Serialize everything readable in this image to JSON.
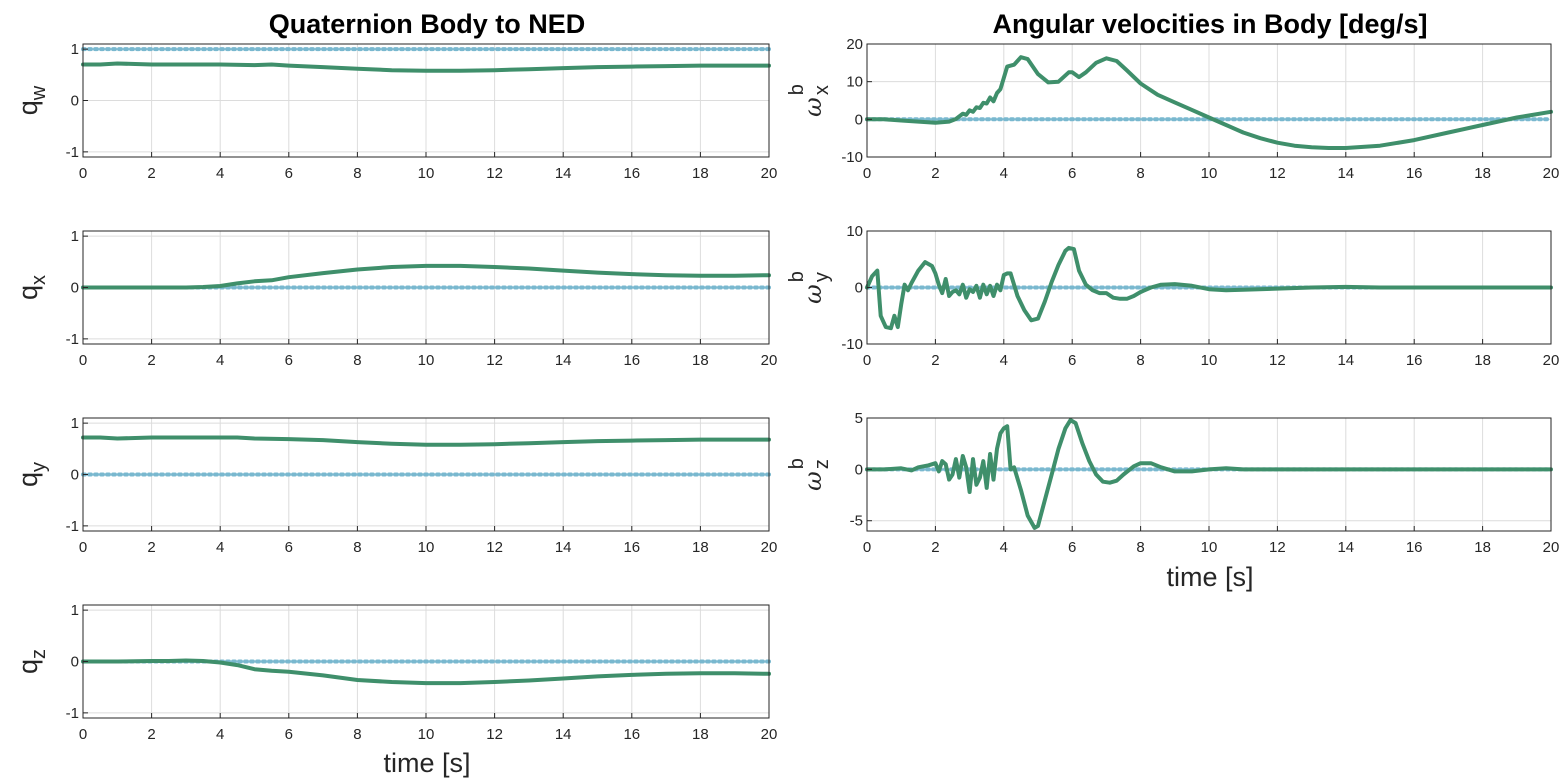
{
  "colors": {
    "actual": "#3f8f6b",
    "reference": "#79b8cf"
  },
  "figure": {
    "left_title": "Quaternion Body to NED",
    "right_title": "Angular velocities in Body [deg/s]",
    "left_xlabel": "time [s]",
    "right_xlabel": "time [s]"
  },
  "chart_data": [
    {
      "type": "line",
      "id": "qw",
      "ylabel": {
        "main": "q",
        "sub": "w"
      },
      "xlim": [
        0,
        20
      ],
      "ylim": [
        -1.1,
        1.1
      ],
      "xticks": [
        0,
        2,
        4,
        6,
        8,
        10,
        12,
        14,
        16,
        18,
        20
      ],
      "yticks": [
        -1,
        0,
        1
      ],
      "grid": true,
      "series": [
        {
          "role": "actual",
          "x": [
            0,
            0.5,
            1,
            2,
            3,
            4,
            5,
            5.5,
            6,
            7,
            8,
            9,
            10,
            11,
            12,
            13,
            14,
            15,
            16,
            17,
            18,
            19,
            20
          ],
          "y": [
            0.7,
            0.7,
            0.72,
            0.7,
            0.7,
            0.7,
            0.69,
            0.7,
            0.68,
            0.65,
            0.62,
            0.59,
            0.58,
            0.58,
            0.59,
            0.61,
            0.63,
            0.65,
            0.66,
            0.67,
            0.68,
            0.68,
            0.68
          ]
        },
        {
          "role": "reference",
          "x": [
            0,
            20
          ],
          "y": [
            1,
            1
          ]
        }
      ]
    },
    {
      "type": "line",
      "id": "qx",
      "ylabel": {
        "main": "q",
        "sub": "x"
      },
      "xlim": [
        0,
        20
      ],
      "ylim": [
        -1.1,
        1.1
      ],
      "xticks": [
        0,
        2,
        4,
        6,
        8,
        10,
        12,
        14,
        16,
        18,
        20
      ],
      "yticks": [
        -1,
        0,
        1
      ],
      "grid": true,
      "series": [
        {
          "role": "actual",
          "x": [
            0,
            2,
            3,
            3.5,
            4,
            4.5,
            5,
            5.5,
            6,
            7,
            8,
            9,
            10,
            10.5,
            11,
            12,
            13,
            14,
            15,
            16,
            17,
            18,
            19,
            20
          ],
          "y": [
            0,
            0,
            0,
            0.01,
            0.03,
            0.08,
            0.12,
            0.14,
            0.2,
            0.28,
            0.35,
            0.4,
            0.42,
            0.42,
            0.42,
            0.4,
            0.37,
            0.33,
            0.29,
            0.26,
            0.24,
            0.23,
            0.23,
            0.24
          ]
        },
        {
          "role": "reference",
          "x": [
            0,
            20
          ],
          "y": [
            0,
            0
          ]
        }
      ]
    },
    {
      "type": "line",
      "id": "qy",
      "ylabel": {
        "main": "q",
        "sub": "y"
      },
      "xlim": [
        0,
        20
      ],
      "ylim": [
        -1.1,
        1.1
      ],
      "xticks": [
        0,
        2,
        4,
        6,
        8,
        10,
        12,
        14,
        16,
        18,
        20
      ],
      "yticks": [
        -1,
        0,
        1
      ],
      "grid": true,
      "series": [
        {
          "role": "actual",
          "x": [
            0,
            0.5,
            1,
            2,
            3,
            4,
            4.5,
            5,
            6,
            7,
            8,
            9,
            10,
            11,
            12,
            13,
            14,
            15,
            16,
            17,
            18,
            19,
            20
          ],
          "y": [
            0.72,
            0.72,
            0.7,
            0.72,
            0.72,
            0.72,
            0.72,
            0.7,
            0.69,
            0.67,
            0.63,
            0.6,
            0.58,
            0.58,
            0.59,
            0.61,
            0.63,
            0.65,
            0.66,
            0.67,
            0.68,
            0.68,
            0.68
          ]
        },
        {
          "role": "reference",
          "x": [
            0,
            20
          ],
          "y": [
            0,
            0
          ]
        }
      ]
    },
    {
      "type": "line",
      "id": "qz",
      "ylabel": {
        "main": "q",
        "sub": "z"
      },
      "xlim": [
        0,
        20
      ],
      "ylim": [
        -1.1,
        1.1
      ],
      "xticks": [
        0,
        2,
        4,
        6,
        8,
        10,
        12,
        14,
        16,
        18,
        20
      ],
      "yticks": [
        -1,
        0,
        1
      ],
      "grid": true,
      "series": [
        {
          "role": "actual",
          "x": [
            0,
            1,
            2,
            2.5,
            3,
            3.5,
            4,
            4.5,
            5,
            5.5,
            6,
            7,
            8,
            9,
            10,
            11,
            12,
            13,
            14,
            15,
            16,
            17,
            18,
            19,
            20
          ],
          "y": [
            0,
            0,
            0.01,
            0.01,
            0.02,
            0.01,
            -0.02,
            -0.07,
            -0.15,
            -0.18,
            -0.2,
            -0.27,
            -0.36,
            -0.4,
            -0.42,
            -0.42,
            -0.4,
            -0.37,
            -0.33,
            -0.29,
            -0.26,
            -0.24,
            -0.23,
            -0.23,
            -0.24
          ]
        },
        {
          "role": "reference",
          "x": [
            0,
            20
          ],
          "y": [
            0,
            0
          ]
        }
      ]
    },
    {
      "type": "line",
      "id": "wx",
      "ylabel": {
        "main": "ω",
        "sub": "x",
        "sup": "b"
      },
      "xlim": [
        0,
        20
      ],
      "ylim": [
        -10,
        20
      ],
      "xticks": [
        0,
        2,
        4,
        6,
        8,
        10,
        12,
        14,
        16,
        18,
        20
      ],
      "yticks": [
        -10,
        0,
        10,
        20
      ],
      "grid": true,
      "series": [
        {
          "role": "actual",
          "x": [
            0,
            0.5,
            1,
            1.5,
            2,
            2.4,
            2.6,
            2.8,
            2.9,
            3.0,
            3.1,
            3.2,
            3.3,
            3.4,
            3.5,
            3.6,
            3.7,
            3.8,
            3.9,
            4.0,
            4.1,
            4.3,
            4.5,
            4.7,
            5.0,
            5.3,
            5.6,
            5.9,
            6.0,
            6.2,
            6.4,
            6.7,
            7.0,
            7.3,
            7.6,
            8.0,
            8.5,
            9,
            9.5,
            10,
            10.5,
            11,
            11.5,
            12,
            12.5,
            13,
            13.5,
            14,
            15,
            16,
            17,
            18,
            19,
            20
          ],
          "y": [
            0,
            0,
            -0.3,
            -0.6,
            -0.9,
            -0.6,
            0.1,
            1.5,
            1.2,
            2.4,
            2.0,
            3.2,
            3.0,
            4.4,
            4.2,
            5.8,
            4.8,
            7.0,
            8.0,
            11,
            14,
            14.5,
            16.5,
            16,
            12,
            9.8,
            10,
            12.5,
            12.5,
            11.2,
            12.5,
            15,
            16.2,
            15.5,
            13,
            9.5,
            6.5,
            4.5,
            2.5,
            0.5,
            -1.5,
            -3.5,
            -5,
            -6.2,
            -7,
            -7.4,
            -7.6,
            -7.6,
            -7,
            -5.5,
            -3.5,
            -1.5,
            0.5,
            2
          ]
        },
        {
          "role": "reference",
          "x": [
            0,
            20
          ],
          "y": [
            0,
            0
          ]
        }
      ]
    },
    {
      "type": "line",
      "id": "wy",
      "ylabel": {
        "main": "ω",
        "sub": "y",
        "sup": "b"
      },
      "xlim": [
        0,
        20
      ],
      "ylim": [
        -10,
        10
      ],
      "xticks": [
        0,
        2,
        4,
        6,
        8,
        10,
        12,
        14,
        16,
        18,
        20
      ],
      "yticks": [
        -10,
        0,
        10
      ],
      "grid": true,
      "series": [
        {
          "role": "actual",
          "x": [
            0,
            0.15,
            0.3,
            0.4,
            0.55,
            0.7,
            0.8,
            0.9,
            1.0,
            1.1,
            1.2,
            1.3,
            1.5,
            1.7,
            1.9,
            2.0,
            2.1,
            2.2,
            2.3,
            2.4,
            2.5,
            2.6,
            2.7,
            2.8,
            2.9,
            3.0,
            3.1,
            3.2,
            3.3,
            3.4,
            3.5,
            3.6,
            3.7,
            3.8,
            3.9,
            4.0,
            4.1,
            4.2,
            4.4,
            4.6,
            4.8,
            5.0,
            5.2,
            5.4,
            5.6,
            5.8,
            5.9,
            6.05,
            6.2,
            6.4,
            6.6,
            6.8,
            7.0,
            7.2,
            7.4,
            7.6,
            7.8,
            8.0,
            8.3,
            8.6,
            9,
            9.5,
            10,
            10.5,
            11,
            12,
            13,
            14,
            15,
            16,
            17,
            18,
            19,
            20
          ],
          "y": [
            0,
            2,
            3,
            -5,
            -7,
            -7.2,
            -5,
            -7,
            -3,
            0.5,
            -0.5,
            0.8,
            3,
            4.5,
            3.8,
            2.5,
            0.5,
            -1,
            1.5,
            -1.5,
            -0.8,
            -0.5,
            -1.2,
            0.5,
            -1.8,
            -0.3,
            -0.8,
            0.3,
            -1.8,
            0.5,
            -1.2,
            0.3,
            -1.5,
            0.5,
            -0.5,
            2.2,
            2.5,
            2.5,
            -1.5,
            -4,
            -5.8,
            -5.5,
            -2.5,
            1,
            4,
            6.5,
            7,
            6.8,
            3,
            0.5,
            -0.5,
            -1,
            -1,
            -1.8,
            -2,
            -2,
            -1.5,
            -0.8,
            0,
            0.5,
            0.6,
            0.3,
            -0.3,
            -0.5,
            -0.4,
            -0.2,
            0,
            0.1,
            0,
            0,
            0,
            0,
            0,
            0
          ]
        },
        {
          "role": "reference",
          "x": [
            0,
            20
          ],
          "y": [
            0,
            0
          ]
        }
      ]
    },
    {
      "type": "line",
      "id": "wz",
      "ylabel": {
        "main": "ω",
        "sub": "z",
        "sup": "b"
      },
      "xlim": [
        0,
        20
      ],
      "ylim": [
        -6,
        5
      ],
      "xticks": [
        0,
        2,
        4,
        6,
        8,
        10,
        12,
        14,
        16,
        18,
        20
      ],
      "yticks": [
        -5,
        0,
        5
      ],
      "grid": true,
      "series": [
        {
          "role": "actual",
          "x": [
            0,
            0.5,
            1,
            1.3,
            1.5,
            1.8,
            2.0,
            2.1,
            2.2,
            2.3,
            2.4,
            2.5,
            2.6,
            2.7,
            2.8,
            2.9,
            3.0,
            3.1,
            3.2,
            3.3,
            3.4,
            3.5,
            3.6,
            3.7,
            3.8,
            3.9,
            4.0,
            4.1,
            4.2,
            4.3,
            4.5,
            4.7,
            4.9,
            5.0,
            5.2,
            5.4,
            5.6,
            5.8,
            5.95,
            6.1,
            6.3,
            6.5,
            6.7,
            6.9,
            7.1,
            7.3,
            7.5,
            7.8,
            8.0,
            8.3,
            8.6,
            9,
            9.5,
            10,
            10.5,
            11,
            12,
            13,
            14,
            15,
            16,
            17,
            18,
            19,
            20
          ],
          "y": [
            0,
            0,
            0.1,
            -0.1,
            0.2,
            0.4,
            0.6,
            -0.2,
            0.8,
            0.5,
            -1.0,
            -0.5,
            1.0,
            -0.8,
            1.3,
            0.2,
            -2.2,
            1.0,
            -1.5,
            -0.8,
            0.8,
            -1.8,
            1.5,
            -1.0,
            2.0,
            3.5,
            4.0,
            4.2,
            0,
            0.2,
            -2.0,
            -4.5,
            -5.7,
            -5.5,
            -3,
            -0.5,
            2,
            4,
            4.8,
            4.5,
            2.5,
            0.8,
            -0.5,
            -1.2,
            -1.3,
            -1.1,
            -0.5,
            0.3,
            0.6,
            0.6,
            0.2,
            -0.2,
            -0.2,
            0,
            0.1,
            0,
            0,
            0,
            0,
            0,
            0,
            0,
            0,
            0,
            0
          ]
        },
        {
          "role": "reference",
          "x": [
            0,
            20
          ],
          "y": [
            0,
            0
          ]
        }
      ]
    }
  ]
}
